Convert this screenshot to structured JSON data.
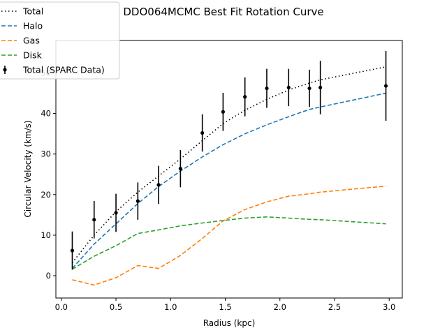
{
  "chart_data": {
    "type": "line",
    "title": "DDO064MCMC Best Fit Rotation Curve",
    "xlabel": "Radius (kpc)",
    "ylabel": "Circular Velocity (km/s)",
    "xlim": [
      -0.05,
      3.12
    ],
    "ylim": [
      -5.5,
      58
    ],
    "xticks": [
      0.0,
      0.5,
      1.0,
      1.5,
      2.0,
      2.5,
      3.0
    ],
    "xtick_labels": [
      "0.0",
      "0.5",
      "1.0",
      "1.5",
      "2.0",
      "2.5",
      "3.0"
    ],
    "yticks": [
      0,
      10,
      20,
      30,
      40,
      50
    ],
    "ytick_labels": [
      "0",
      "10",
      "20",
      "30",
      "40",
      "50"
    ],
    "grid": false,
    "legend_position": "top-left",
    "series": [
      {
        "name": "Total",
        "style": "dotted",
        "color": "#000000",
        "x": [
          0.1,
          0.3,
          0.5,
          0.7,
          0.89,
          1.09,
          1.29,
          1.48,
          1.68,
          1.88,
          2.08,
          2.27,
          2.37,
          2.97
        ],
        "y": [
          3.2,
          10.0,
          15.8,
          20.6,
          24.6,
          28.8,
          33.3,
          37.5,
          40.8,
          43.5,
          45.8,
          47.5,
          48.3,
          51.5
        ]
      },
      {
        "name": "Halo",
        "style": "dashed",
        "color": "#1f77b4",
        "x": [
          0.1,
          0.3,
          0.5,
          0.7,
          0.89,
          1.09,
          1.29,
          1.48,
          1.68,
          1.88,
          2.08,
          2.27,
          2.37,
          2.97
        ],
        "y": [
          1.8,
          7.8,
          12.8,
          17.8,
          22.0,
          25.8,
          29.3,
          32.3,
          35.0,
          37.2,
          39.2,
          41.0,
          41.6,
          45.0
        ]
      },
      {
        "name": "Gas",
        "style": "dashed",
        "color": "#ff7f0e",
        "x": [
          0.1,
          0.3,
          0.5,
          0.7,
          0.89,
          1.09,
          1.29,
          1.48,
          1.68,
          1.88,
          2.08,
          2.27,
          2.37,
          2.97
        ],
        "y": [
          -1.0,
          -2.3,
          -0.5,
          2.5,
          1.8,
          5.0,
          9.2,
          13.5,
          16.3,
          18.2,
          19.6,
          20.2,
          20.6,
          22.1
        ]
      },
      {
        "name": "Disk",
        "style": "dashed",
        "color": "#2ca02c",
        "x": [
          0.1,
          0.3,
          0.5,
          0.7,
          0.89,
          1.09,
          1.29,
          1.48,
          1.68,
          1.88,
          2.08,
          2.27,
          2.37,
          2.97
        ],
        "y": [
          1.6,
          4.8,
          7.4,
          10.4,
          11.3,
          12.3,
          13.0,
          13.6,
          14.2,
          14.5,
          14.2,
          13.9,
          13.8,
          12.8
        ]
      }
    ],
    "data_points": {
      "name": "Total (SPARC Data)",
      "color": "#000000",
      "x": [
        0.1,
        0.3,
        0.5,
        0.7,
        0.89,
        1.09,
        1.29,
        1.48,
        1.68,
        1.88,
        2.08,
        2.27,
        2.37,
        2.97
      ],
      "y": [
        6.2,
        13.8,
        15.5,
        18.4,
        22.4,
        26.4,
        35.2,
        40.4,
        44.1,
        46.2,
        46.4,
        46.2,
        46.4,
        46.8
      ],
      "err": [
        4.7,
        4.6,
        4.7,
        4.6,
        4.7,
        4.6,
        4.6,
        4.7,
        4.8,
        4.8,
        4.6,
        4.6,
        6.6,
        8.6
      ]
    }
  }
}
